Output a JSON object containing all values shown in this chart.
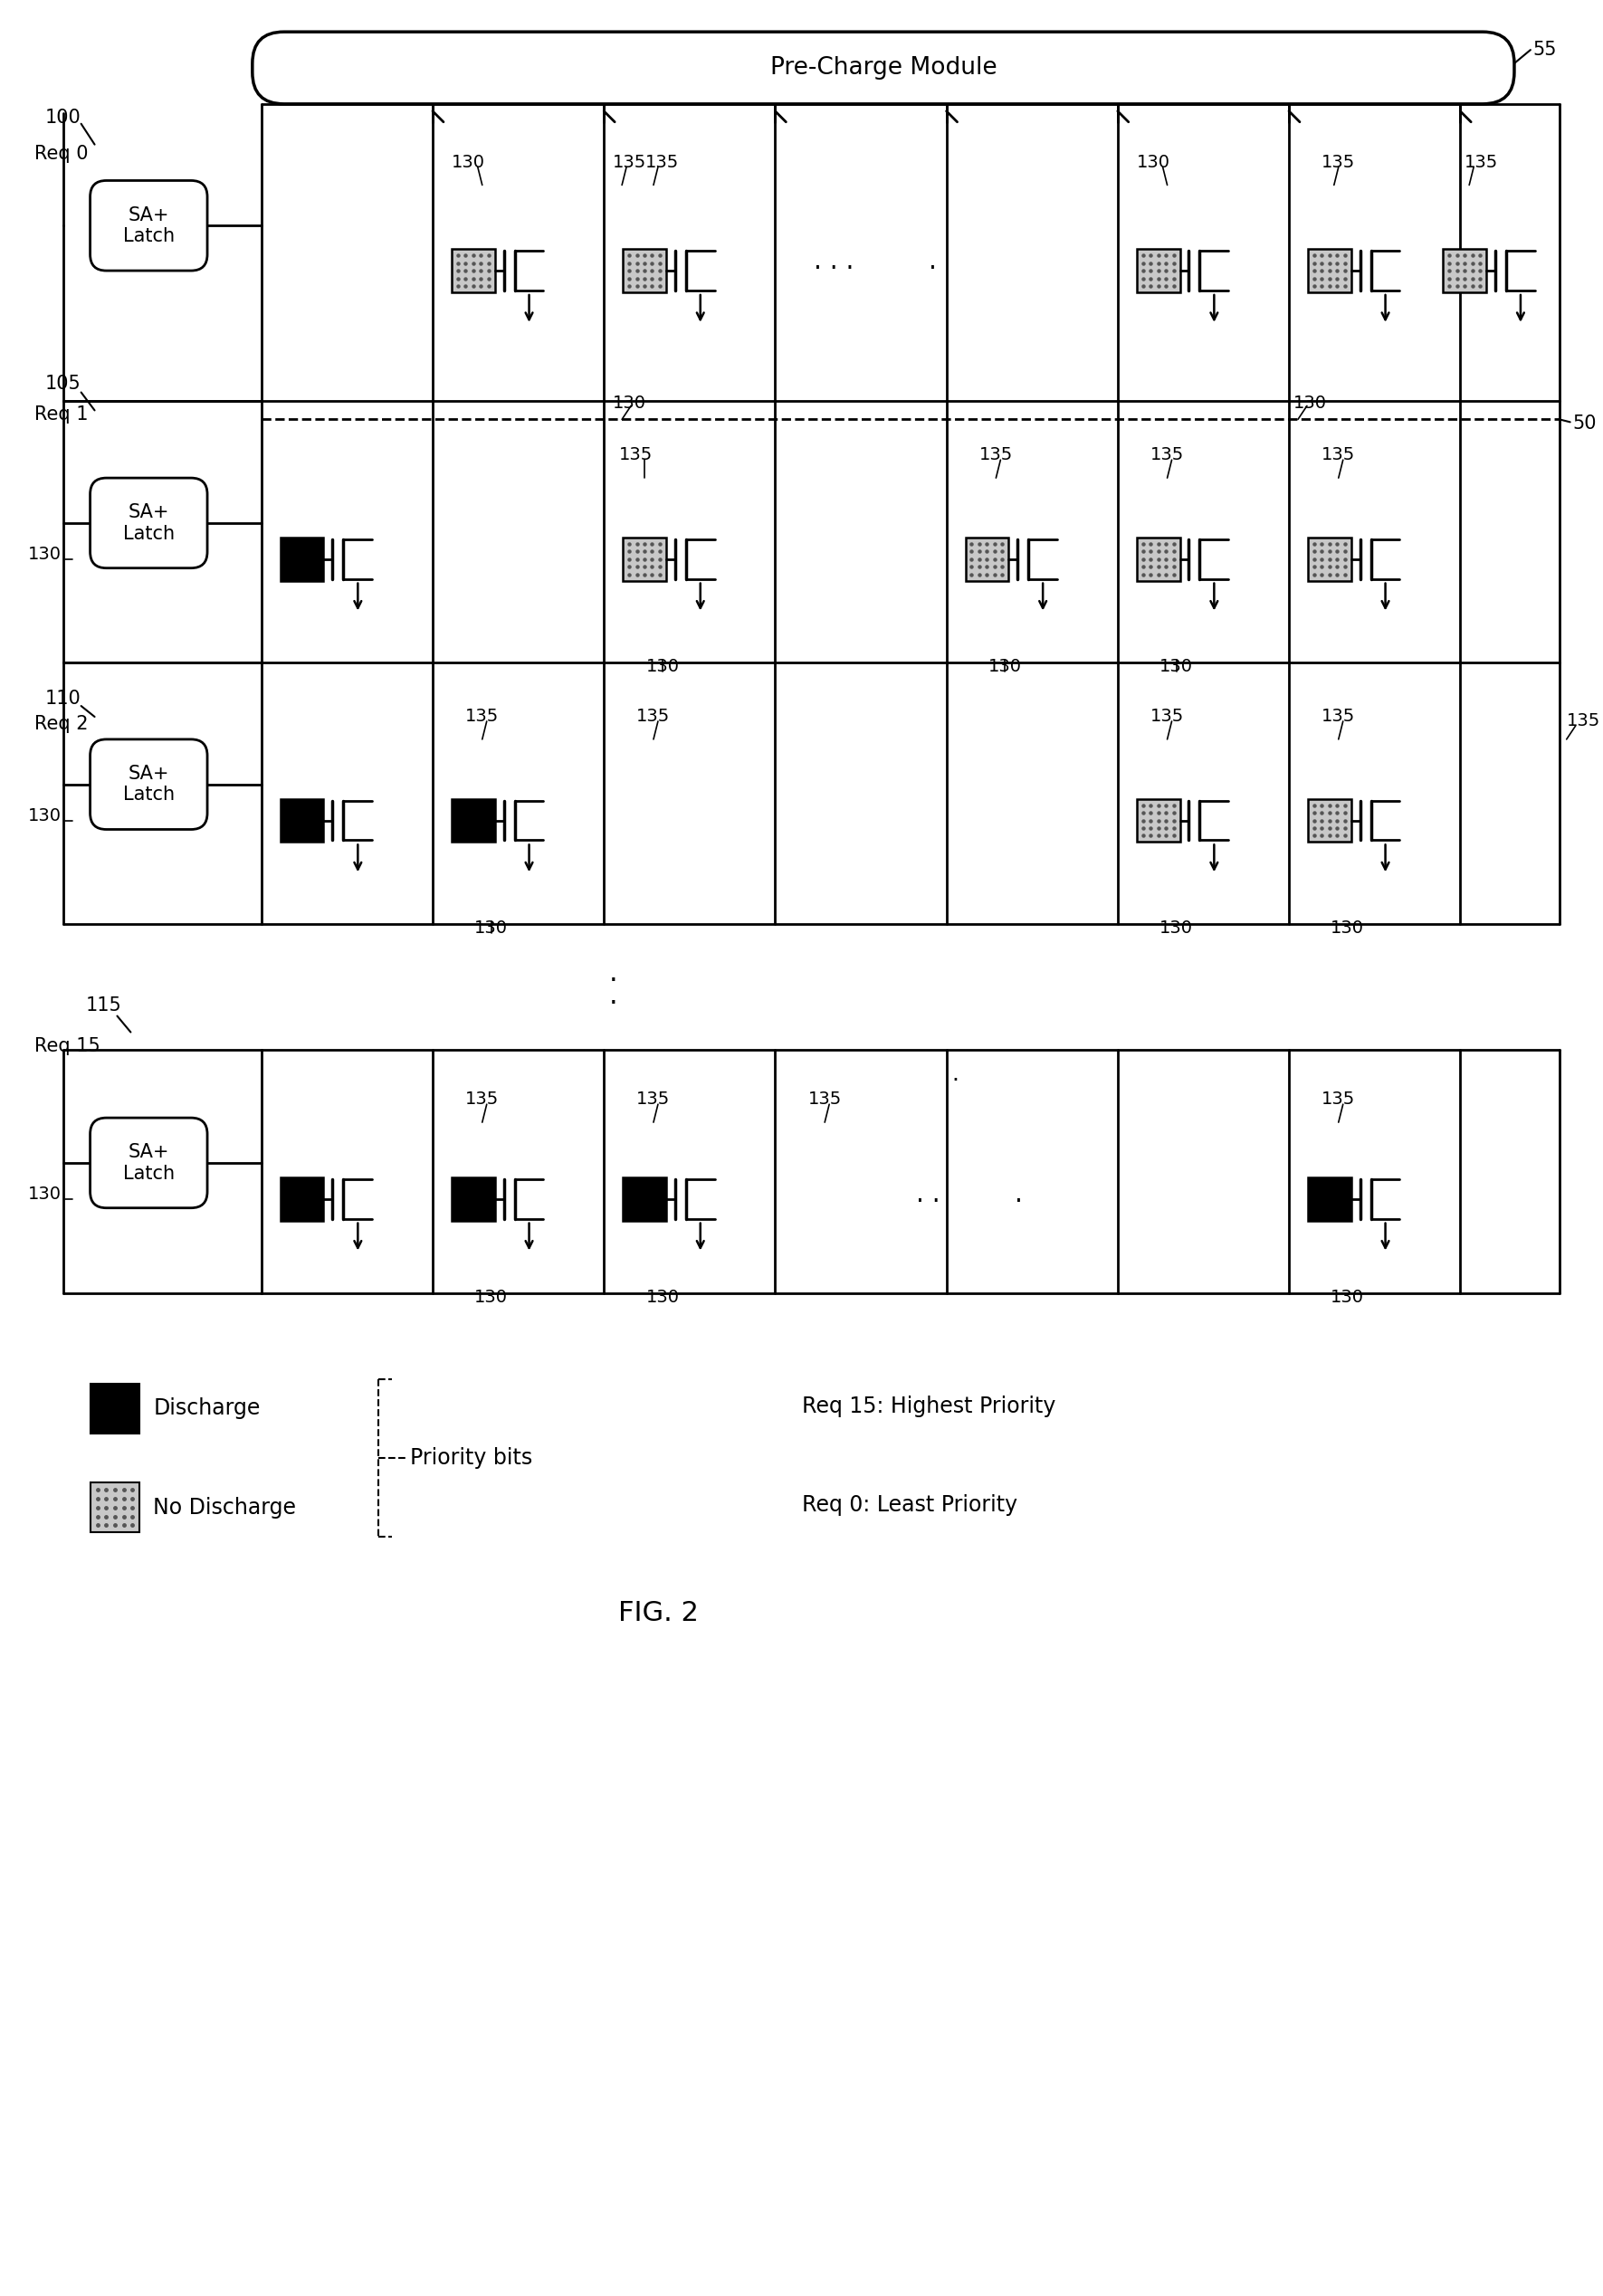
{
  "bg_color": "#ffffff",
  "precharge_label": "Pre-Charge Module",
  "precharge_ref": "55",
  "fig_label": "FIG. 2",
  "discharge_label": "Discharge",
  "no_discharge_label": "No Discharge",
  "priority_bits_label": "Priority bits",
  "req15_priority": "Req 15: Highest Priority",
  "req0_priority": "Req 0: Least Priority"
}
